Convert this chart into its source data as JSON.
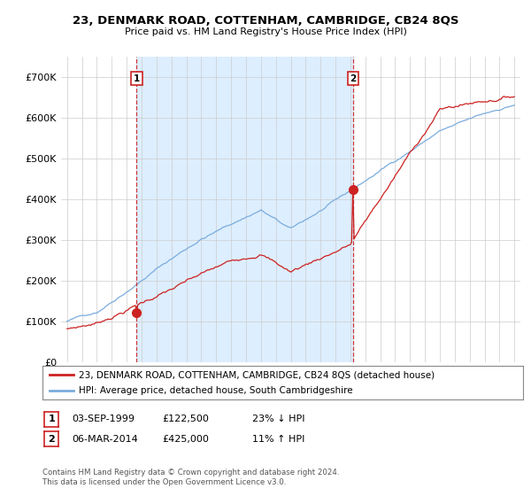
{
  "title": "23, DENMARK ROAD, COTTENHAM, CAMBRIDGE, CB24 8QS",
  "subtitle": "Price paid vs. HM Land Registry's House Price Index (HPI)",
  "ylim": [
    0,
    750000
  ],
  "yticks": [
    0,
    100000,
    200000,
    300000,
    400000,
    500000,
    600000,
    700000
  ],
  "ytick_labels": [
    "£0",
    "£100K",
    "£200K",
    "£300K",
    "£400K",
    "£500K",
    "£600K",
    "£700K"
  ],
  "line1_color": "#cc2222",
  "line2_color": "#7aacdd",
  "shade_color": "#ddeeff",
  "vline_color": "#cc2222",
  "background_color": "#ffffff",
  "grid_color": "#cccccc",
  "transaction1_year": 1999.67,
  "transaction1_price": 122500,
  "transaction2_year": 2014.17,
  "transaction2_price": 425000,
  "legend_entry1": "23, DENMARK ROAD, COTTENHAM, CAMBRIDGE, CB24 8QS (detached house)",
  "legend_entry2": "HPI: Average price, detached house, South Cambridgeshire",
  "annotation1_date": "03-SEP-1999",
  "annotation1_price": "£122,500",
  "annotation1_hpi": "23% ↓ HPI",
  "annotation2_date": "06-MAR-2014",
  "annotation2_price": "£425,000",
  "annotation2_hpi": "11% ↑ HPI",
  "footnote": "Contains HM Land Registry data © Crown copyright and database right 2024.\nThis data is licensed under the Open Government Licence v3.0."
}
